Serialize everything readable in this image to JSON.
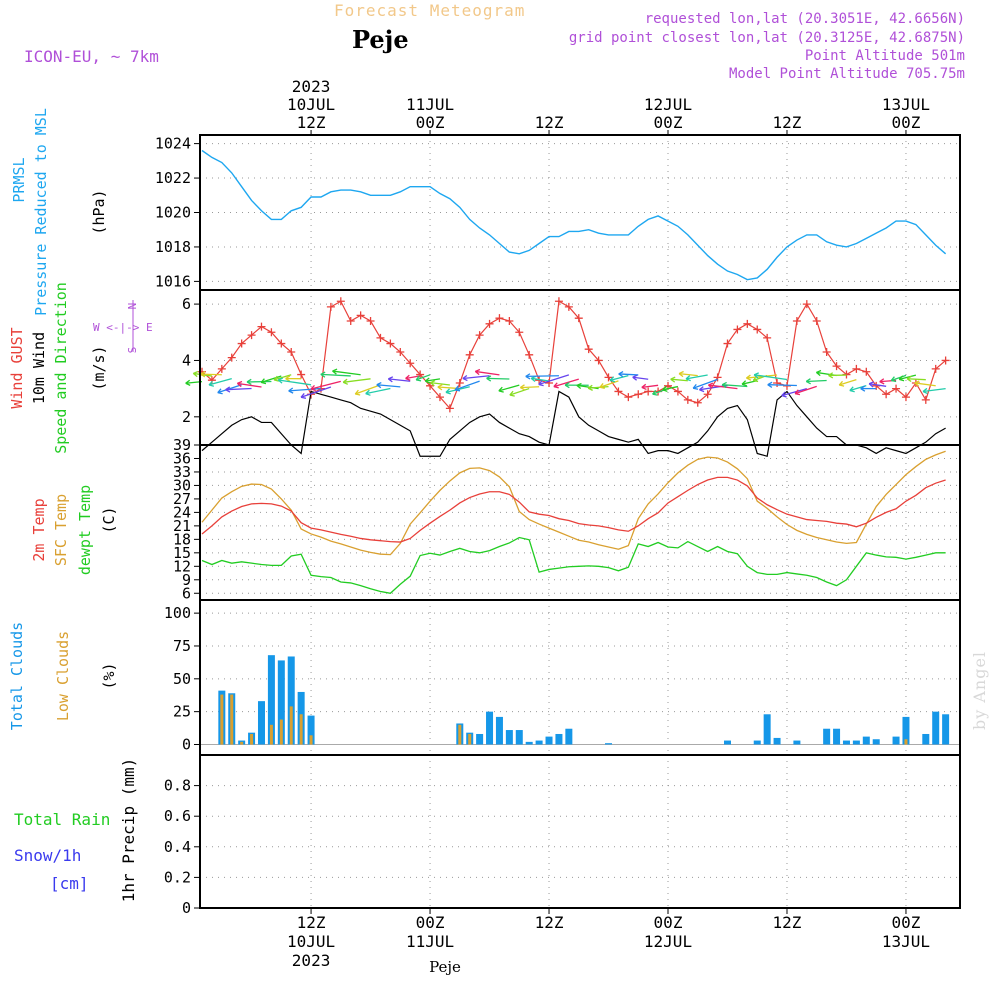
{
  "header": {
    "supertitle": "Forecast Meteogram",
    "title": "Peje",
    "model": "ICON-EU, ~ 7km",
    "requested": "requested lon,lat (20.3051E, 42.6656N)",
    "gridpoint": "grid point closest lon,lat (20.3125E, 42.6875N)",
    "point_alt": "Point Altitude 501m",
    "model_alt": "Model Point Altitude 705.75m",
    "watermark": "by Angel",
    "footer": "Peje"
  },
  "time_axis": {
    "top_labels": [
      {
        "line1": "2023",
        "line2": "10JUL",
        "line3": "12Z",
        "h": 12
      },
      {
        "line1": "",
        "line2": "11JUL",
        "line3": "00Z",
        "h": 24
      },
      {
        "line1": "",
        "line2": "",
        "line3": "12Z",
        "h": 36
      },
      {
        "line1": "",
        "line2": "12JUL",
        "line3": "00Z",
        "h": 48
      },
      {
        "line1": "",
        "line2": "",
        "line3": "12Z",
        "h": 60
      },
      {
        "line1": "",
        "line2": "13JUL",
        "line3": "00Z",
        "h": 72
      }
    ],
    "bottom_labels": [
      {
        "line1": "12Z",
        "line2": "10JUL",
        "line3": "2023",
        "h": 12
      },
      {
        "line1": "00Z",
        "line2": "11JUL",
        "line3": "",
        "h": 24
      },
      {
        "line1": "12Z",
        "line2": "",
        "line3": "",
        "h": 36
      },
      {
        "line1": "00Z",
        "line2": "12JUL",
        "line3": "",
        "h": 48
      },
      {
        "line1": "12Z",
        "line2": "",
        "line3": "",
        "h": 60
      },
      {
        "line1": "00Z",
        "line2": "13JUL",
        "line3": "",
        "h": 72
      }
    ]
  },
  "panel_labels": {
    "p1": {
      "a": "PRMSL",
      "b": "Pressure Reduced to MSL",
      "unit": "(hPa)"
    },
    "p2": {
      "a": "Wind GUST",
      "b": "10m Wind",
      "c": "Speed and Direction",
      "unit": "(m/s)",
      "compass_n": "N",
      "compass_s": "S",
      "compass_w": "W <-|-> E"
    },
    "p3": {
      "a": "2m Temp",
      "b": "SFC Temp",
      "c": "dewpt Temp",
      "unit": "(C)"
    },
    "p4": {
      "a": "Total Clouds",
      "b": "Low Clouds",
      "unit": "(%)"
    },
    "p5": {
      "a": "Total  Rain",
      "b": "Snow/1h",
      "c": "[cm]",
      "unit": "1hr Precip (mm)"
    }
  },
  "colors": {
    "pressure": "#1ea7f0",
    "gust": "#e8403a",
    "wind": "#000000",
    "t2m": "#e8403a",
    "tsfc": "#d9a030",
    "dewpt": "#22cc22",
    "total_clouds": "#1597e8",
    "low_clouds": "#d9a030",
    "header_purple": "#b050d8",
    "header_orange": "#f2c88a"
  },
  "chart_data": [
    {
      "type": "line",
      "name": "pressure",
      "xlim": [
        1,
        77
      ],
      "ylim": [
        1015.5,
        1024.5
      ],
      "yticks": [
        1016,
        1018,
        1020,
        1022,
        1024
      ],
      "x": [
        1,
        2,
        3,
        4,
        5,
        6,
        7,
        8,
        9,
        10,
        11,
        12,
        13,
        14,
        15,
        16,
        17,
        18,
        19,
        20,
        21,
        22,
        23,
        24,
        25,
        26,
        27,
        28,
        29,
        30,
        31,
        32,
        33,
        34,
        35,
        36,
        37,
        38,
        39,
        40,
        41,
        42,
        43,
        44,
        45,
        46,
        47,
        48,
        49,
        50,
        51,
        52,
        53,
        54,
        55,
        56,
        57,
        58,
        59,
        60,
        61,
        62,
        63,
        64,
        65,
        66,
        67,
        68,
        69,
        70,
        71,
        72,
        73,
        74,
        75,
        76
      ],
      "y": [
        1023.6,
        1023.2,
        1022.9,
        1022.3,
        1021.5,
        1020.7,
        1020.1,
        1019.6,
        1019.6,
        1020.1,
        1020.3,
        1020.9,
        1020.9,
        1021.2,
        1021.3,
        1021.3,
        1021.2,
        1021.0,
        1021.0,
        1021.0,
        1021.2,
        1021.5,
        1021.5,
        1021.5,
        1021.1,
        1020.8,
        1020.3,
        1019.6,
        1019.1,
        1018.7,
        1018.2,
        1017.7,
        1017.6,
        1017.8,
        1018.2,
        1018.6,
        1018.6,
        1018.9,
        1018.9,
        1019.0,
        1018.8,
        1018.7,
        1018.7,
        1018.7,
        1019.2,
        1019.6,
        1019.8,
        1019.5,
        1019.2,
        1018.7,
        1018.1,
        1017.5,
        1017.0,
        1016.6,
        1016.4,
        1016.1,
        1016.2,
        1016.7,
        1017.4,
        1018.0,
        1018.4,
        1018.7,
        1018.7,
        1018.3,
        1018.1,
        1018.0,
        1018.2,
        1018.5,
        1018.8,
        1019.1,
        1019.5,
        1019.5,
        1019.3,
        1018.7,
        1018.1,
        1017.6
      ]
    },
    {
      "type": "line",
      "name": "wind",
      "xlim": [
        1,
        77
      ],
      "ylim": [
        1,
        6.5
      ],
      "yticks": [
        2,
        4,
        6
      ],
      "gust_x": [
        1,
        2,
        3,
        4,
        5,
        6,
        7,
        8,
        9,
        10,
        11,
        12,
        13,
        14,
        15,
        16,
        17,
        18,
        19,
        20,
        21,
        22,
        23,
        24,
        25,
        26,
        27,
        28,
        29,
        30,
        31,
        32,
        33,
        34,
        35,
        36,
        37,
        38,
        39,
        40,
        41,
        42,
        43,
        44,
        45,
        46,
        47,
        48,
        49,
        50,
        51,
        52,
        53,
        54,
        55,
        56,
        57,
        58,
        59,
        60,
        61,
        62,
        63,
        64,
        65,
        66,
        67,
        68,
        69,
        70,
        71,
        72,
        73,
        74,
        75,
        76
      ],
      "gust": [
        3.6,
        3.3,
        3.7,
        4.1,
        4.6,
        4.9,
        5.2,
        5.0,
        4.6,
        4.3,
        3.5,
        2.8,
        3.0,
        5.9,
        6.1,
        5.4,
        5.6,
        5.4,
        4.8,
        4.6,
        4.3,
        3.9,
        3.5,
        3.1,
        2.7,
        2.3,
        3.2,
        4.2,
        4.9,
        5.3,
        5.5,
        5.4,
        5.0,
        4.2,
        3.3,
        3.2,
        6.1,
        5.9,
        5.5,
        4.4,
        4.0,
        3.4,
        2.9,
        2.7,
        2.8,
        2.9,
        2.9,
        3.1,
        2.9,
        2.6,
        2.5,
        2.8,
        3.4,
        4.6,
        5.1,
        5.3,
        5.1,
        4.8,
        3.2,
        3.1,
        5.4,
        6.0,
        5.4,
        4.3,
        3.8,
        3.5,
        3.7,
        3.6,
        3.1,
        2.8,
        3.0,
        2.7,
        3.2,
        2.6,
        3.7,
        4.0
      ],
      "speed": [
        0.8,
        1.1,
        1.4,
        1.7,
        1.9,
        2.0,
        1.8,
        1.8,
        1.4,
        1.0,
        0.7,
        2.9,
        2.8,
        2.7,
        2.6,
        2.5,
        2.3,
        2.2,
        2.1,
        1.9,
        1.7,
        1.5,
        0.6,
        0.6,
        0.6,
        1.2,
        1.5,
        1.8,
        2.0,
        2.1,
        1.8,
        1.6,
        1.4,
        1.3,
        1.1,
        1.0,
        2.9,
        2.7,
        2.0,
        1.7,
        1.5,
        1.3,
        1.2,
        1.1,
        1.2,
        0.7,
        0.8,
        0.8,
        0.7,
        0.9,
        1.1,
        1.5,
        2.0,
        2.3,
        2.4,
        1.9,
        0.7,
        0.6,
        2.6,
        2.9,
        2.4,
        2.0,
        1.6,
        1.3,
        1.3,
        1.0,
        1.0,
        0.9,
        0.7,
        0.9,
        0.8,
        0.7,
        0.9,
        1.1,
        1.4,
        1.6
      ]
    },
    {
      "type": "line",
      "name": "temperature",
      "xlim": [
        1,
        77
      ],
      "ylim": [
        4.5,
        39
      ],
      "yticks": [
        6,
        9,
        12,
        15,
        18,
        21,
        24,
        27,
        30,
        33,
        36,
        39
      ],
      "x": [
        1,
        2,
        3,
        4,
        5,
        6,
        7,
        8,
        9,
        10,
        11,
        12,
        13,
        14,
        15,
        16,
        17,
        18,
        19,
        20,
        21,
        22,
        23,
        24,
        25,
        26,
        27,
        28,
        29,
        30,
        31,
        32,
        33,
        34,
        35,
        36,
        37,
        38,
        39,
        40,
        41,
        42,
        43,
        44,
        45,
        46,
        47,
        48,
        49,
        50,
        51,
        52,
        53,
        54,
        55,
        56,
        57,
        58,
        59,
        60,
        61,
        62,
        63,
        64,
        65,
        66,
        67,
        68,
        69,
        70,
        71,
        72,
        73,
        74,
        75,
        76
      ],
      "t2m": [
        19.2,
        21.0,
        23.0,
        24.3,
        25.3,
        25.9,
        26.0,
        25.9,
        25.4,
        24.3,
        21.7,
        20.5,
        20.1,
        19.6,
        19.1,
        18.7,
        18.2,
        17.9,
        17.7,
        17.5,
        17.4,
        18.2,
        20.0,
        21.6,
        23.1,
        24.5,
        26.1,
        27.3,
        28.1,
        28.6,
        28.6,
        28.0,
        26.3,
        24.1,
        23.6,
        23.3,
        22.6,
        22.2,
        21.5,
        21.2,
        21.0,
        20.6,
        20.1,
        19.8,
        21.0,
        22.6,
        23.9,
        26.1,
        27.5,
        28.9,
        30.2,
        31.2,
        31.8,
        31.8,
        31.2,
        29.9,
        27.2,
        25.7,
        24.6,
        23.6,
        23.0,
        22.4,
        22.2,
        22.0,
        21.6,
        21.4,
        20.8,
        21.6,
        22.9,
        24.0,
        24.8,
        26.5,
        27.8,
        29.5,
        30.5,
        31.2
      ],
      "tsfc": [
        21.8,
        24.5,
        27.2,
        28.6,
        29.8,
        30.3,
        30.2,
        29.2,
        27.0,
        24.5,
        20.3,
        19.2,
        18.5,
        17.6,
        17.0,
        16.3,
        15.6,
        15.1,
        14.7,
        14.6,
        17.1,
        21.4,
        23.9,
        26.5,
        28.9,
        31.0,
        32.8,
        33.8,
        33.9,
        33.3,
        31.9,
        29.7,
        24.2,
        22.4,
        21.4,
        20.5,
        19.6,
        18.7,
        17.8,
        17.4,
        16.8,
        16.3,
        15.8,
        16.6,
        22.6,
        25.9,
        28.1,
        30.6,
        32.8,
        34.5,
        35.8,
        36.3,
        36.1,
        35.2,
        33.7,
        31.5,
        26.5,
        24.9,
        23.0,
        21.3,
        20.0,
        19.1,
        18.4,
        17.9,
        17.4,
        17.1,
        17.3,
        21.4,
        25.3,
        28.0,
        30.2,
        32.4,
        34.2,
        35.8,
        36.8,
        37.6
      ],
      "dewpt": [
        13.3,
        12.4,
        13.3,
        12.7,
        13.0,
        12.7,
        12.4,
        12.2,
        12.2,
        14.3,
        14.7,
        10.0,
        9.7,
        9.5,
        8.5,
        8.3,
        7.7,
        7.0,
        6.4,
        6.0,
        8.0,
        9.8,
        14.4,
        14.9,
        14.5,
        15.3,
        16.0,
        15.3,
        15.0,
        15.5,
        16.4,
        17.2,
        18.4,
        17.9,
        10.7,
        11.3,
        11.6,
        11.9,
        12.0,
        12.1,
        12.0,
        11.7,
        11.0,
        11.8,
        17.0,
        16.4,
        17.3,
        16.3,
        16.1,
        17.5,
        16.4,
        15.3,
        16.4,
        15.3,
        14.8,
        12.0,
        10.6,
        10.2,
        10.2,
        10.6,
        10.3,
        10.0,
        9.5,
        8.5,
        7.7,
        9.0,
        12.0,
        15.0,
        14.5,
        14.1,
        14.0,
        13.6,
        14.0,
        14.5,
        15.0,
        15.0
      ]
    },
    {
      "type": "bar",
      "name": "clouds",
      "xlim": [
        1,
        77
      ],
      "ylim": [
        -8,
        110
      ],
      "yticks": [
        0,
        25,
        50,
        75,
        100
      ],
      "x": [
        3,
        4,
        5,
        6,
        7,
        8,
        9,
        10,
        11,
        12,
        13,
        14,
        15,
        16,
        17,
        18,
        19,
        20,
        21,
        22,
        23,
        24,
        25,
        26,
        27,
        28,
        29,
        30,
        31,
        32,
        33,
        34,
        35,
        36,
        37,
        38,
        39,
        40,
        41,
        42,
        43,
        44,
        45,
        46,
        47,
        48,
        49,
        50,
        51,
        52,
        53,
        54,
        55,
        56,
        57,
        58,
        59,
        60,
        61,
        62,
        63,
        64,
        65,
        66,
        67,
        68,
        69,
        70,
        71,
        72,
        73,
        74,
        75,
        76
      ],
      "total": [
        41,
        39,
        3,
        9,
        33,
        68,
        64,
        67,
        40,
        22,
        0,
        0,
        0,
        0,
        0,
        0,
        0,
        0,
        0,
        0,
        0,
        0,
        0,
        0,
        16,
        9,
        8,
        25,
        21,
        11,
        11,
        2,
        3,
        6,
        8,
        12,
        0,
        0,
        0,
        1,
        0,
        0,
        0,
        0,
        0,
        0,
        0,
        0,
        0,
        0,
        0,
        3,
        0,
        0,
        3,
        23,
        5,
        0,
        3,
        0,
        0,
        12,
        12,
        3,
        3,
        6,
        4,
        0,
        6,
        21,
        0,
        8,
        25,
        23
      ],
      "low": [
        38,
        38,
        2,
        8,
        0,
        15,
        19,
        29,
        23,
        7,
        0,
        0,
        0,
        0,
        0,
        0,
        0,
        0,
        0,
        0,
        0,
        0,
        0,
        0,
        15,
        8,
        0,
        0,
        0,
        0,
        0,
        0,
        0,
        0,
        0,
        0,
        0,
        0,
        0,
        0,
        0,
        0,
        0,
        0,
        0,
        0,
        0,
        0,
        0,
        0,
        0,
        0,
        0,
        0,
        0,
        0,
        0,
        0,
        0,
        0,
        0,
        0,
        0,
        0,
        0,
        0,
        0,
        0,
        0,
        4,
        0,
        0,
        0,
        0
      ]
    },
    {
      "type": "bar",
      "name": "precipitation",
      "xlim": [
        1,
        77
      ],
      "ylim": [
        0,
        1.0
      ],
      "yticks": [
        0,
        0.2,
        0.4,
        0.6,
        0.8
      ],
      "x": [],
      "values": []
    }
  ]
}
